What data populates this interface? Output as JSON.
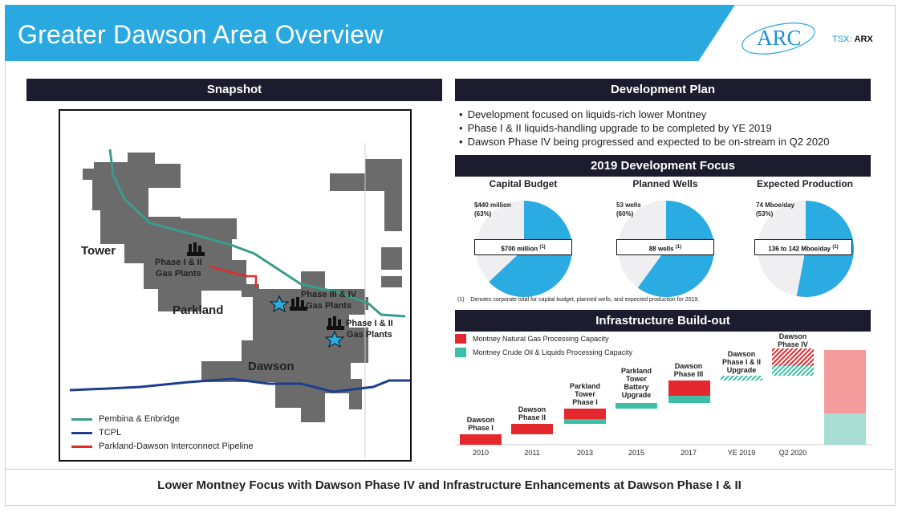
{
  "header": {
    "title": "Greater Dawson Area Overview",
    "logo_text": "ARC",
    "ticker_label": "TSX:",
    "ticker_symbol": "ARX"
  },
  "snapshot": {
    "bar_title": "Snapshot",
    "labels": {
      "tower": "Tower",
      "parkland": "Parkland",
      "dawson": "Dawson",
      "phase12_plants_line1": "Phase I & II",
      "phase12_plants_line2": "Gas Plants",
      "phase34_line1": "Phase III & IV",
      "phase34_line2": "Gas Plants",
      "dawson12_line1": "Phase I & II",
      "dawson12_line2": "Gas Plants"
    },
    "legend": [
      {
        "label": "Pembina & Enbridge",
        "color": "#3a9c8c"
      },
      {
        "label": "TCPL",
        "color": "#1e3d8f"
      },
      {
        "label": "Parkland-Dawson Interconnect Pipeline",
        "color": "#e02b2b"
      }
    ]
  },
  "development_plan": {
    "bar_title": "Development Plan",
    "bullets": [
      "Development focused on liquids-rich lower Montney",
      "Phase I & II liquids-handling upgrade to be completed by YE 2019",
      "Dawson Phase IV being progressed and expected to be on-stream in Q2 2020"
    ]
  },
  "focus": {
    "bar_title": "2019 Development Focus",
    "charts": [
      {
        "title": "Capital Budget",
        "small_line1": "$440 million",
        "small_line2": "(63%)",
        "box_text": "$700 million",
        "sup": "(1)",
        "fraction": 0.63
      },
      {
        "title": "Planned Wells",
        "small_line1": "53 wells",
        "small_line2": "(60%)",
        "box_text": "88 wells",
        "sup": "(1)",
        "fraction": 0.6
      },
      {
        "title": "Expected Production",
        "small_line1": "74 Mboe/day",
        "small_line2": "(53%)",
        "box_text": "136 to 142 Mboe/day",
        "sup": "(1)",
        "fraction": 0.53
      }
    ],
    "footnote_marker": "(1)",
    "footnote": "Denotes corporate total for capital budget, planned wells, and expected production for 2019.",
    "colors": {
      "highlight": "#2aace2",
      "rest": "#efeff2"
    }
  },
  "infrastructure": {
    "bar_title": "Infrastructure Build-out",
    "legend": [
      {
        "label": "Montney Natural Gas Processing Capacity",
        "color": "#e4292e"
      },
      {
        "label": "Montney Crude Oil & Liquids Processing Capacity",
        "color": "#3cbfa4"
      }
    ],
    "columns": [
      {
        "year": "2010",
        "label": [
          "Dawson",
          "Phase I"
        ]
      },
      {
        "year": "2011",
        "label": [
          "Dawson",
          "Phase II"
        ]
      },
      {
        "year": "2013",
        "label": [
          "Parkland",
          "Tower",
          "Phase I"
        ]
      },
      {
        "year": "2015",
        "label": [
          "Parkland",
          "Tower",
          "Battery",
          "Upgrade"
        ]
      },
      {
        "year": "2017",
        "label": [
          "Dawson",
          "Phase III"
        ]
      },
      {
        "year": "YE 2019",
        "label": [
          "Dawson",
          "Phase I & II",
          "Upgrade"
        ]
      },
      {
        "year": "Q2 2020",
        "label": [
          "Dawson",
          "Phase IV"
        ]
      }
    ]
  },
  "footer": {
    "text": "Lower Montney Focus with Dawson Phase IV and Infrastructure Enhancements at Dawson Phase I & II"
  }
}
